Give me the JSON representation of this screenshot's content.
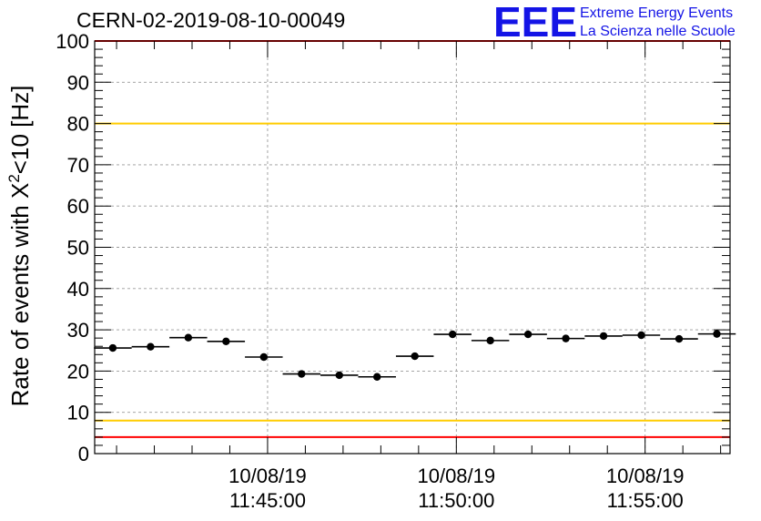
{
  "chart_data": {
    "type": "scatter",
    "title": "CERN-02-2019-08-10-00049",
    "ylabel": {
      "main": "Rate of events with ",
      "symbol": "X",
      "superscript": "2",
      "tail": "<10 [Hz]"
    },
    "ylim": [
      0,
      100
    ],
    "y_ticks": [
      "0",
      "10",
      "20",
      "30",
      "40",
      "50",
      "60",
      "70",
      "80",
      "90",
      "100"
    ],
    "x_ticks": [
      {
        "date": "10/08/19",
        "time": "11:45:00"
      },
      {
        "date": "10/08/19",
        "time": "11:50:00"
      },
      {
        "date": "10/08/19",
        "time": "11:55:00"
      }
    ],
    "xlim_minutes_from_1145": [
      -4.58,
      12.25
    ],
    "grid": true,
    "points": [
      {
        "x": -4.1,
        "y": 25.6
      },
      {
        "x": -3.1,
        "y": 25.9
      },
      {
        "x": -2.1,
        "y": 28.1
      },
      {
        "x": -1.1,
        "y": 27.2
      },
      {
        "x": -0.1,
        "y": 23.4
      },
      {
        "x": 0.9,
        "y": 19.3
      },
      {
        "x": 1.9,
        "y": 19.0
      },
      {
        "x": 2.9,
        "y": 18.6
      },
      {
        "x": 3.9,
        "y": 23.6
      },
      {
        "x": 4.9,
        "y": 28.9
      },
      {
        "x": 5.9,
        "y": 27.4
      },
      {
        "x": 6.9,
        "y": 28.9
      },
      {
        "x": 7.9,
        "y": 27.9
      },
      {
        "x": 8.9,
        "y": 28.5
      },
      {
        "x": 9.9,
        "y": 28.7
      },
      {
        "x": 10.9,
        "y": 27.8
      },
      {
        "x": 11.9,
        "y": 29.0
      }
    ],
    "x_error_half_width_minutes": 0.5,
    "reference_lines": [
      {
        "y": 100,
        "color": "#ff0000"
      },
      {
        "y": 80,
        "color": "#ffcc00"
      },
      {
        "y": 8,
        "color": "#ffcc00"
      },
      {
        "y": 4,
        "color": "#ff0000"
      }
    ]
  },
  "logo": {
    "eee": "EEE",
    "line1": "Extreme Energy Events",
    "line2": "La Scienza nelle Scuole",
    "color": "#1414e6"
  }
}
